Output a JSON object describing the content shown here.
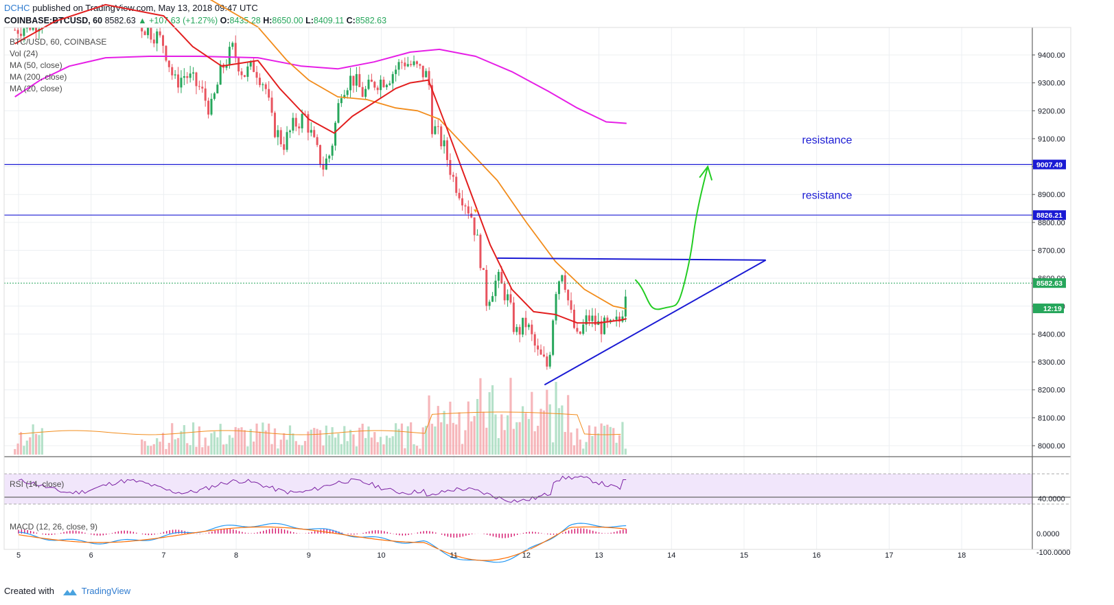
{
  "header": {
    "author": "DCHC",
    "published": "published on TradingView.com, May 13, 2018 09:47 UTC"
  },
  "ohlc": {
    "symbol": "COINBASE:BTCUSD, 60",
    "last": "8582.63",
    "change": "+107.63 (+1.27%)",
    "o_label": "O:",
    "o": "8435.28",
    "h_label": "H:",
    "h": "8650.00",
    "l_label": "L:",
    "l": "8409.11",
    "c_label": "C:",
    "c": "8582.63"
  },
  "legend": {
    "title": "BTC/USD, 60, COINBASE",
    "vol": "Vol (24)",
    "ma50": "MA (50, close)",
    "ma200": "MA (200, close)",
    "ma20": "MA (20, close)",
    "rsi": "RSI (14, close)",
    "macd": "MACD (12, 26, close, 9)"
  },
  "footer": {
    "created": "Created with",
    "brand": "TradingView"
  },
  "colors": {
    "up": "#26a65b",
    "down": "#e8545f",
    "ma20": "#e21e1e",
    "ma50": "#f28c1b",
    "ma200": "#e61ee6",
    "annotation": "#1a1ad4",
    "projection": "#22cc22",
    "rsi_bg": "#f1e6fb",
    "rsi_line": "#7a1fa2",
    "macd_line": "#2196f3",
    "signal_line": "#ff6d00",
    "hist": "#d4106a"
  },
  "chart_data": {
    "type": "candlestick",
    "title": "BTC/USD, 60, COINBASE",
    "x_ticks": [
      "5",
      "6",
      "7",
      "8",
      "9",
      "10",
      "11",
      "12",
      "13",
      "14",
      "15",
      "16",
      "17",
      "18"
    ],
    "y_ticks": [
      8000,
      8100,
      8200,
      8300,
      8400,
      8500,
      8600,
      8700,
      8800,
      8900,
      9000,
      9100,
      9200,
      9300,
      9400
    ],
    "ylim": [
      7960,
      9500
    ],
    "grid": true,
    "price_labels": [
      {
        "text": "9007.49",
        "value": 9007.49
      },
      {
        "text": "8826.21",
        "value": 8826.21
      },
      {
        "text": "8582.63",
        "value": 8582.63
      },
      {
        "text": "12:19",
        "value": 8492
      }
    ],
    "levels": {
      "resistance_1": 9007.49,
      "resistance_2": 8826.21,
      "last": 8582.63
    },
    "annotations": [
      {
        "text": "resistance",
        "day": 15.8,
        "value": 9082
      },
      {
        "text": "resistance",
        "day": 15.8,
        "value": 8885
      }
    ],
    "triangle": {
      "top": [
        [
          11.6,
          8672
        ],
        [
          15.3,
          8665
        ]
      ],
      "bottom": [
        [
          12.25,
          8218
        ],
        [
          15.3,
          8665
        ]
      ]
    },
    "projection": [
      [
        13.5,
        8595
      ],
      [
        13.85,
        8490
      ],
      [
        14.1,
        8520
      ],
      [
        14.3,
        8750
      ],
      [
        14.5,
        9000
      ]
    ],
    "close_path": [
      [
        4.95,
        9490
      ],
      [
        5.4,
        9530
      ],
      [
        5.9,
        9560
      ],
      [
        6.4,
        9580
      ],
      [
        6.6,
        9520
      ],
      [
        6.9,
        9470
      ],
      [
        7.0,
        9440
      ],
      [
        7.15,
        9300
      ],
      [
        7.3,
        9330
      ],
      [
        7.5,
        9280
      ],
      [
        7.65,
        9200
      ],
      [
        7.8,
        9350
      ],
      [
        7.95,
        9420
      ],
      [
        8.1,
        9330
      ],
      [
        8.25,
        9360
      ],
      [
        8.4,
        9290
      ],
      [
        8.5,
        9150
      ],
      [
        8.65,
        9080
      ],
      [
        8.8,
        9150
      ],
      [
        8.95,
        9180
      ],
      [
        9.1,
        9060
      ],
      [
        9.2,
        9000
      ],
      [
        9.3,
        9050
      ],
      [
        9.45,
        9280
      ],
      [
        9.6,
        9320
      ],
      [
        9.75,
        9260
      ],
      [
        9.9,
        9300
      ],
      [
        10.1,
        9320
      ],
      [
        10.3,
        9380
      ],
      [
        10.5,
        9350
      ],
      [
        10.65,
        9320
      ],
      [
        10.7,
        9150
      ],
      [
        10.85,
        9080
      ],
      [
        11.0,
        8950
      ],
      [
        11.15,
        8880
      ],
      [
        11.25,
        8820
      ],
      [
        11.35,
        8700
      ],
      [
        11.45,
        8520
      ],
      [
        11.6,
        8600
      ],
      [
        11.75,
        8520
      ],
      [
        11.85,
        8400
      ],
      [
        12.0,
        8440
      ],
      [
        12.15,
        8330
      ],
      [
        12.3,
        8280
      ],
      [
        12.4,
        8560
      ],
      [
        12.5,
        8640
      ],
      [
        12.6,
        8480
      ],
      [
        12.7,
        8380
      ],
      [
        12.85,
        8460
      ],
      [
        13.0,
        8430
      ],
      [
        13.15,
        8420
      ],
      [
        13.3,
        8450
      ],
      [
        13.38,
        8582
      ]
    ],
    "ma20": [
      [
        4.95,
        9440
      ],
      [
        5.5,
        9520
      ],
      [
        6.2,
        9580
      ],
      [
        7.0,
        9540
      ],
      [
        7.4,
        9430
      ],
      [
        7.8,
        9360
      ],
      [
        8.3,
        9380
      ],
      [
        8.6,
        9280
      ],
      [
        9.0,
        9170
      ],
      [
        9.35,
        9120
      ],
      [
        9.6,
        9180
      ],
      [
        9.9,
        9230
      ],
      [
        10.2,
        9280
      ],
      [
        10.4,
        9300
      ],
      [
        10.65,
        9310
      ],
      [
        10.9,
        9140
      ],
      [
        11.2,
        8930
      ],
      [
        11.5,
        8720
      ],
      [
        11.8,
        8560
      ],
      [
        12.1,
        8480
      ],
      [
        12.4,
        8470
      ],
      [
        12.7,
        8440
      ],
      [
        13.0,
        8440
      ],
      [
        13.3,
        8450
      ],
      [
        13.38,
        8455
      ]
    ],
    "ma50": [
      [
        7.5,
        9620
      ],
      [
        8.3,
        9500
      ],
      [
        8.7,
        9380
      ],
      [
        9.0,
        9310
      ],
      [
        9.4,
        9250
      ],
      [
        9.8,
        9240
      ],
      [
        10.2,
        9210
      ],
      [
        10.5,
        9200
      ],
      [
        10.8,
        9170
      ],
      [
        11.2,
        9060
      ],
      [
        11.6,
        8950
      ],
      [
        12.0,
        8800
      ],
      [
        12.4,
        8660
      ],
      [
        12.8,
        8560
      ],
      [
        13.2,
        8500
      ],
      [
        13.38,
        8490
      ]
    ],
    "ma200": [
      [
        4.95,
        9250
      ],
      [
        5.3,
        9310
      ],
      [
        5.7,
        9360
      ],
      [
        6.2,
        9390
      ],
      [
        6.8,
        9395
      ],
      [
        7.5,
        9395
      ],
      [
        8.3,
        9390
      ],
      [
        8.9,
        9360
      ],
      [
        9.4,
        9350
      ],
      [
        9.9,
        9375
      ],
      [
        10.4,
        9410
      ],
      [
        10.8,
        9420
      ],
      [
        11.3,
        9395
      ],
      [
        11.8,
        9340
      ],
      [
        12.3,
        9270
      ],
      [
        12.7,
        9210
      ],
      [
        13.1,
        9160
      ],
      [
        13.38,
        9155
      ]
    ],
    "volume_max_label": "",
    "rsi": {
      "tick": "40.0000",
      "value": 40,
      "upper": 70,
      "lower": 30
    },
    "macd": {
      "ticks": [
        "0.0000",
        "-100.0000"
      ],
      "tick_values": [
        0,
        -100
      ]
    }
  }
}
